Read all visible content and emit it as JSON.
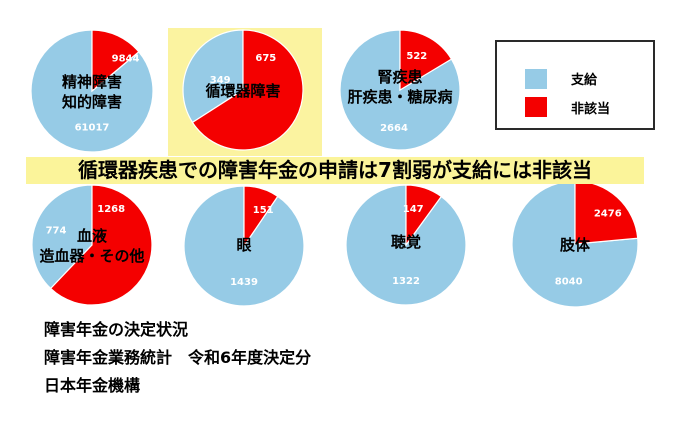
{
  "headline": "循環器疾患での障害年金の申請は7割弱が支給には非該当",
  "legend": {
    "supply": "支給",
    "nonsupply": "非該当"
  },
  "source": [
    "障害年金の決定状況",
    "障害年金業務統計　令和6年度決定分",
    "日本年金機構"
  ],
  "colors": {
    "supply": "#96cbe6",
    "nonsupply": "#f40000",
    "highlight": "#fbf3a0"
  },
  "chart_data": [
    {
      "type": "pie",
      "title_lines": [
        "精神障害",
        "知的障害"
      ],
      "series": [
        {
          "name": "支給",
          "values": [
            61017
          ]
        },
        {
          "name": "非該当",
          "values": [
            9844
          ]
        }
      ],
      "value_labels": [
        "61017",
        "9844"
      ],
      "highlighted": false
    },
    {
      "type": "pie",
      "title_lines": [
        "循環器障害"
      ],
      "series": [
        {
          "name": "支給",
          "values": [
            349
          ]
        },
        {
          "name": "非該当",
          "values": [
            675
          ]
        }
      ],
      "value_labels": [
        "349",
        "675"
      ],
      "highlighted": true
    },
    {
      "type": "pie",
      "title_lines": [
        "腎疾患",
        "肝疾患・糖尿病"
      ],
      "series": [
        {
          "name": "支給",
          "values": [
            2664
          ]
        },
        {
          "name": "非該当",
          "values": [
            522
          ]
        }
      ],
      "value_labels": [
        "2664",
        "522"
      ],
      "highlighted": false
    },
    {
      "type": "pie",
      "title_lines": [
        "血液",
        "造血器・その他"
      ],
      "series": [
        {
          "name": "支給",
          "values": [
            774
          ]
        },
        {
          "name": "非該当",
          "values": [
            1268
          ]
        }
      ],
      "value_labels": [
        "774",
        "1268"
      ],
      "highlighted": false
    },
    {
      "type": "pie",
      "title_lines": [
        "眼"
      ],
      "series": [
        {
          "name": "支給",
          "values": [
            1439
          ]
        },
        {
          "name": "非該当",
          "values": [
            151
          ]
        }
      ],
      "value_labels": [
        "1439",
        "151"
      ],
      "highlighted": false
    },
    {
      "type": "pie",
      "title_lines": [
        "聴覚"
      ],
      "series": [
        {
          "name": "支給",
          "values": [
            1322
          ]
        },
        {
          "name": "非該当",
          "values": [
            147
          ]
        }
      ],
      "value_labels": [
        "1322",
        "147"
      ],
      "highlighted": false
    },
    {
      "type": "pie",
      "title_lines": [
        "肢体"
      ],
      "series": [
        {
          "name": "支給",
          "values": [
            8040
          ]
        },
        {
          "name": "非該当",
          "values": [
            2476
          ]
        }
      ],
      "value_labels": [
        "8040",
        "2476"
      ],
      "highlighted": false
    }
  ]
}
